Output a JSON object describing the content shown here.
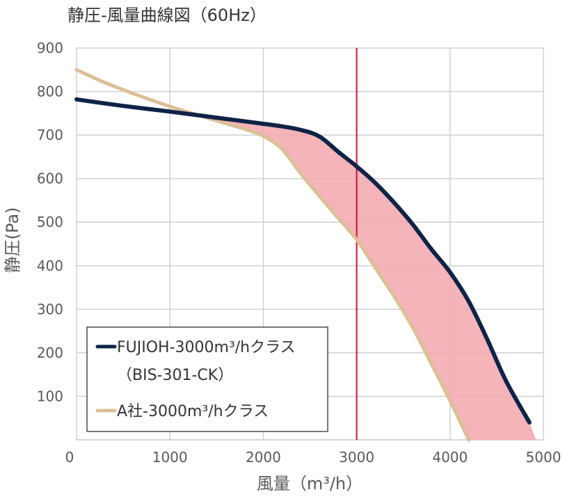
{
  "chart_data": {
    "type": "line",
    "title": "静圧-風量曲線図（60Hz）",
    "xlabel": "風量（m³/h）",
    "ylabel": "静圧(Pa)",
    "xlim": [
      0,
      5000
    ],
    "ylim": [
      0,
      900
    ],
    "x_ticks": [
      "0",
      "1000",
      "2000",
      "3000",
      "4000",
      "5000"
    ],
    "y_ticks": [
      "100",
      "200",
      "300",
      "400",
      "500",
      "600",
      "700",
      "800",
      "900"
    ],
    "grid": true,
    "legend_position": "bottom-left",
    "marker_line": {
      "x": 3000,
      "color": "#c8102e"
    },
    "fill_between_color": "#f2a7ad",
    "series": [
      {
        "name": "FUJIOH-3000m³/hクラス",
        "name_line2": "（BIS-301-CK）",
        "color": "#0f2347",
        "points": [
          [
            0,
            782
          ],
          [
            500,
            767
          ],
          [
            1000,
            754
          ],
          [
            1500,
            740
          ],
          [
            2000,
            726
          ],
          [
            2200,
            720
          ],
          [
            2400,
            712
          ],
          [
            2600,
            697
          ],
          [
            2800,
            662
          ],
          [
            3000,
            628
          ],
          [
            3200,
            590
          ],
          [
            3400,
            545
          ],
          [
            3600,
            495
          ],
          [
            3800,
            438
          ],
          [
            4000,
            385
          ],
          [
            4200,
            318
          ],
          [
            4400,
            230
          ],
          [
            4600,
            135
          ],
          [
            4850,
            40
          ]
        ]
      },
      {
        "name": "A社-3000m³/hクラス",
        "color": "#dcbf97",
        "points": [
          [
            0,
            850
          ],
          [
            300,
            821
          ],
          [
            600,
            796
          ],
          [
            1000,
            766
          ],
          [
            1500,
            733
          ],
          [
            1800,
            714
          ],
          [
            2000,
            698
          ],
          [
            2200,
            668
          ],
          [
            2400,
            612
          ],
          [
            2600,
            560
          ],
          [
            2800,
            510
          ],
          [
            3000,
            460
          ],
          [
            3200,
            395
          ],
          [
            3400,
            330
          ],
          [
            3600,
            258
          ],
          [
            3800,
            175
          ],
          [
            4000,
            90
          ],
          [
            4200,
            0
          ]
        ]
      }
    ]
  }
}
